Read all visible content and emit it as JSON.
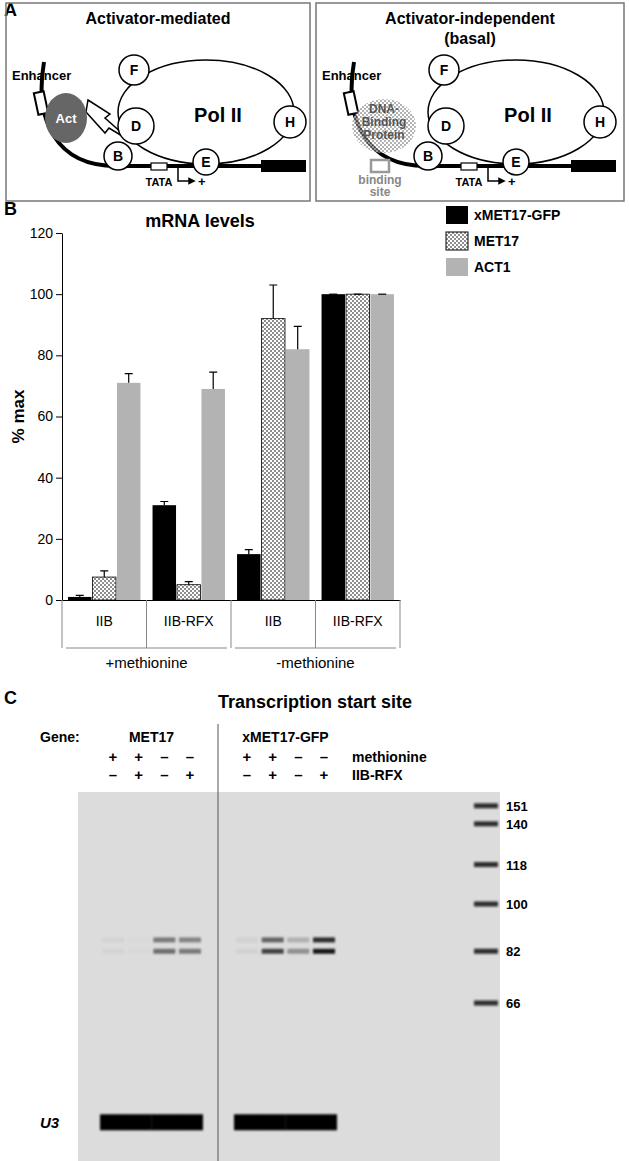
{
  "panel_labels": [
    "A",
    "B",
    "C"
  ],
  "diagram": {
    "left": {
      "title": [
        "Activator-mediated"
      ],
      "enhancer": "Enhancer",
      "activator": "Act",
      "pol": "Pol II",
      "factors": [
        "F",
        "D",
        "B",
        "E",
        "H"
      ],
      "tata": "TATA",
      "start": "+"
    },
    "right": {
      "title": [
        "Activator-independent",
        "(basal)"
      ],
      "enhancer": "Enhancer",
      "protein": [
        "DNA-",
        "Binding",
        "Protein"
      ],
      "site": [
        "binding",
        "site"
      ],
      "pol": "Pol II",
      "factors": [
        "F",
        "D",
        "B",
        "E",
        "H"
      ],
      "tata": "TATA",
      "start": "+"
    }
  },
  "chart_data": {
    "type": "bar",
    "title": "mRNA levels",
    "y_label": "% max",
    "categories": [
      "IIB",
      "IIB-RFX",
      "IIB",
      "IIB-RFX"
    ],
    "group_labels": [
      "+methionine",
      "-methionine"
    ],
    "series": [
      {
        "name": "xMET17-GFP",
        "color": "#000000",
        "values": [
          1,
          31,
          15,
          100
        ],
        "errors": [
          0.5,
          1.2,
          1.5,
          0
        ]
      },
      {
        "name": "MET17",
        "color": "#ffffff",
        "line_style": "dotted",
        "values": [
          7.5,
          5,
          92,
          100
        ],
        "errors": [
          2,
          1,
          11,
          0
        ]
      },
      {
        "name": "ACT1",
        "color": "#b3b3b3",
        "values": [
          71,
          69,
          82,
          100
        ],
        "errors": [
          3,
          5.5,
          7.5,
          0
        ]
      }
    ],
    "ylim": [
      0,
      120
    ],
    "yticks": [
      0,
      20,
      40,
      60,
      80,
      100,
      120
    ],
    "legend": "right"
  },
  "gel": {
    "title": "Transcription start site",
    "gene_heading": "Gene:",
    "genes": [
      "MET17",
      "xMET17-GFP"
    ],
    "conditions": [
      {
        "label": "methionine",
        "values": [
          "+",
          "+",
          "–",
          "–",
          "+",
          "+",
          "–",
          "–"
        ]
      },
      {
        "label": "IIB-RFX",
        "values": [
          "–",
          "+",
          "–",
          "+",
          "–",
          "+",
          "–",
          "+"
        ]
      }
    ],
    "size_range": [
      160,
      34
    ],
    "markers": [
      151,
      140,
      118,
      100,
      82,
      66
    ],
    "band_sizes": [
      86,
      82
    ],
    "band_intensity": [
      [
        0.04,
        0.02,
        0.45,
        0.4,
        0.05,
        0.55,
        0.2,
        0.8
      ],
      [
        0.04,
        0.02,
        0.5,
        0.45,
        0.05,
        0.7,
        0.35,
        0.9
      ]
    ],
    "loading_control": {
      "label": "U3",
      "size": 40,
      "intensity": [
        1,
        1,
        1,
        1,
        1,
        1,
        1,
        1
      ]
    }
  }
}
